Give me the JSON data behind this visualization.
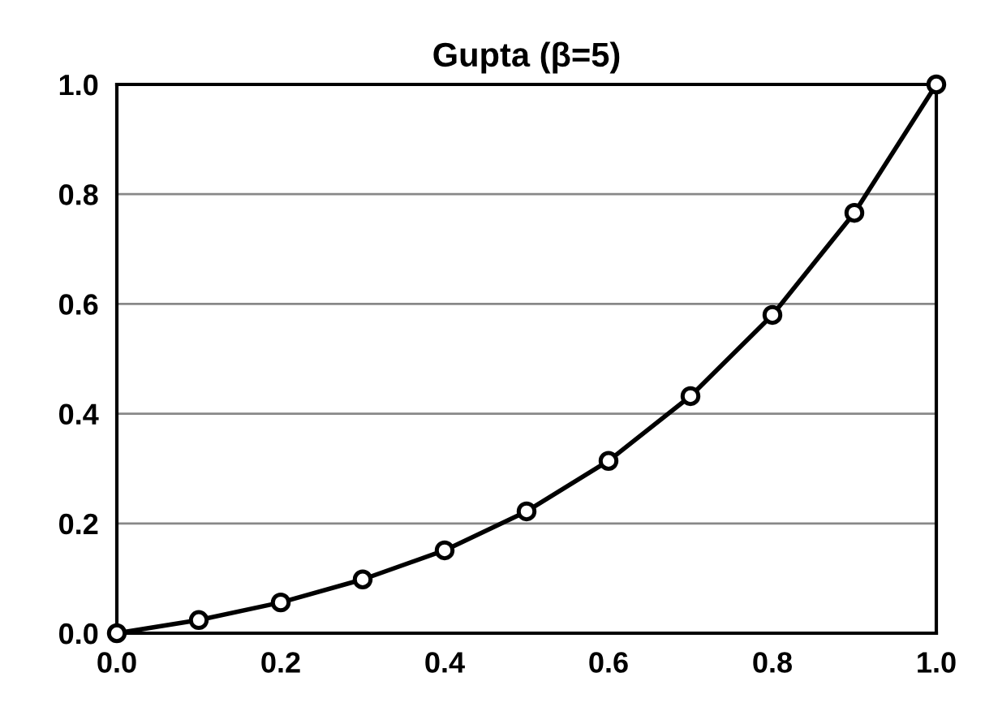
{
  "chart_data": {
    "type": "line",
    "title": "Gupta (β=5)",
    "x": [
      0.0,
      0.1,
      0.2,
      0.3,
      0.4,
      0.5,
      0.6,
      0.7,
      0.8,
      0.9,
      1.0
    ],
    "series": [
      {
        "color": "#000000",
        "values": [
          0.0,
          0.024,
          0.056,
          0.098,
          0.151,
          0.222,
          0.314,
          0.432,
          0.58,
          0.766,
          1.0
        ]
      }
    ],
    "xlim": [
      0,
      1
    ],
    "xticks": [
      {
        "value": 0,
        "label": "0.0"
      },
      {
        "value": 0.2,
        "label": "0.2"
      },
      {
        "value": 0.4,
        "label": "0.4"
      },
      {
        "value": 0.6,
        "label": "0.6"
      },
      {
        "value": 0.8,
        "label": "0.8"
      },
      {
        "value": 1,
        "label": "1.0"
      }
    ],
    "ylim": [
      0,
      1
    ],
    "yticks": [
      {
        "value": 0,
        "label": "0.0"
      },
      {
        "value": 0.2,
        "label": "0.2"
      },
      {
        "value": 0.4,
        "label": "0.4"
      },
      {
        "value": 0.6,
        "label": "0.6"
      },
      {
        "value": 0.8,
        "label": "0.8"
      },
      {
        "value": 1,
        "label": "1.0"
      }
    ],
    "grid": "y",
    "marker": "circle",
    "line_style": "solid"
  }
}
